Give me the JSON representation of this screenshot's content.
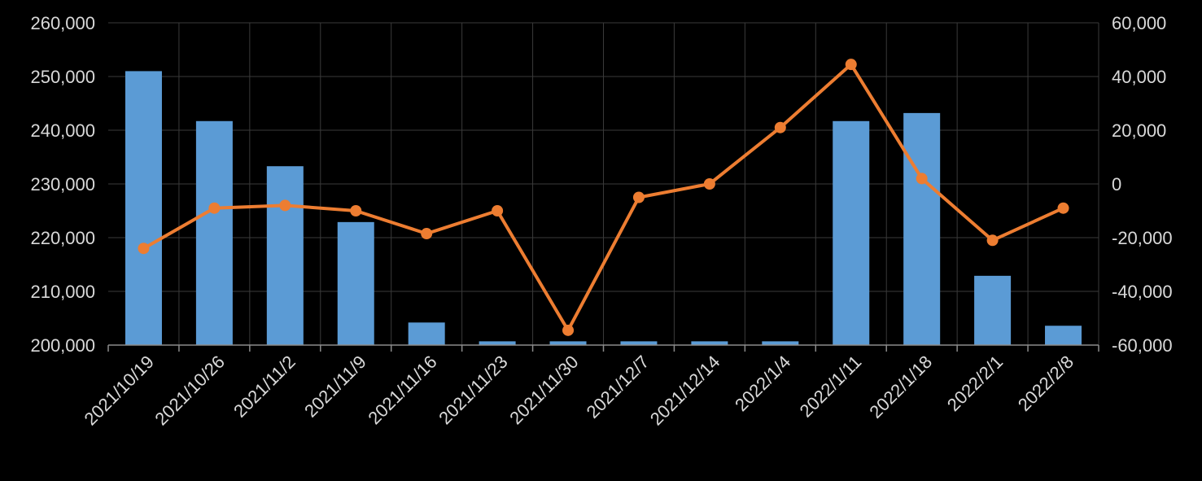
{
  "chart_data": {
    "type": "bar+line",
    "title": "",
    "xlabel": "",
    "categories": [
      "2021/10/19",
      "2021/10/26",
      "2021/11/2",
      "2021/11/9",
      "2021/11/16",
      "2021/11/23",
      "2021/11/30",
      "2021/12/7",
      "2021/12/14",
      "2022/1/4",
      "2022/1/11",
      "2022/1/18",
      "2022/2/1",
      "2022/2/8"
    ],
    "left_axis": {
      "ylim": [
        200000,
        260000
      ],
      "ticks": [
        200000,
        210000,
        220000,
        230000,
        240000,
        250000,
        260000
      ],
      "tick_labels": [
        "200,000",
        "210,000",
        "220,000",
        "230,000",
        "240,000",
        "250,000",
        "260,000"
      ]
    },
    "right_axis": {
      "ylim": [
        -60000,
        60000
      ],
      "ticks": [
        -60000,
        -40000,
        -20000,
        0,
        20000,
        40000,
        60000
      ],
      "tick_labels": [
        "-60,000",
        "-40,000",
        "-20,000",
        "0",
        "20,000",
        "40,000",
        "60,000"
      ]
    },
    "grid": true,
    "series": [
      {
        "type": "bar",
        "axis": "left",
        "color": "#5b9bd5",
        "values": [
          251000,
          241700,
          233300,
          222900,
          204200,
          200700,
          200700,
          200700,
          200700,
          200700,
          241700,
          243200,
          212900,
          203600
        ]
      },
      {
        "type": "line",
        "axis": "right",
        "color": "#ed7d31",
        "values": [
          -24000,
          -9000,
          -8000,
          -10000,
          -18500,
          -10000,
          -54500,
          -5000,
          0,
          21000,
          44500,
          2000,
          -21000,
          -9000
        ]
      }
    ]
  }
}
